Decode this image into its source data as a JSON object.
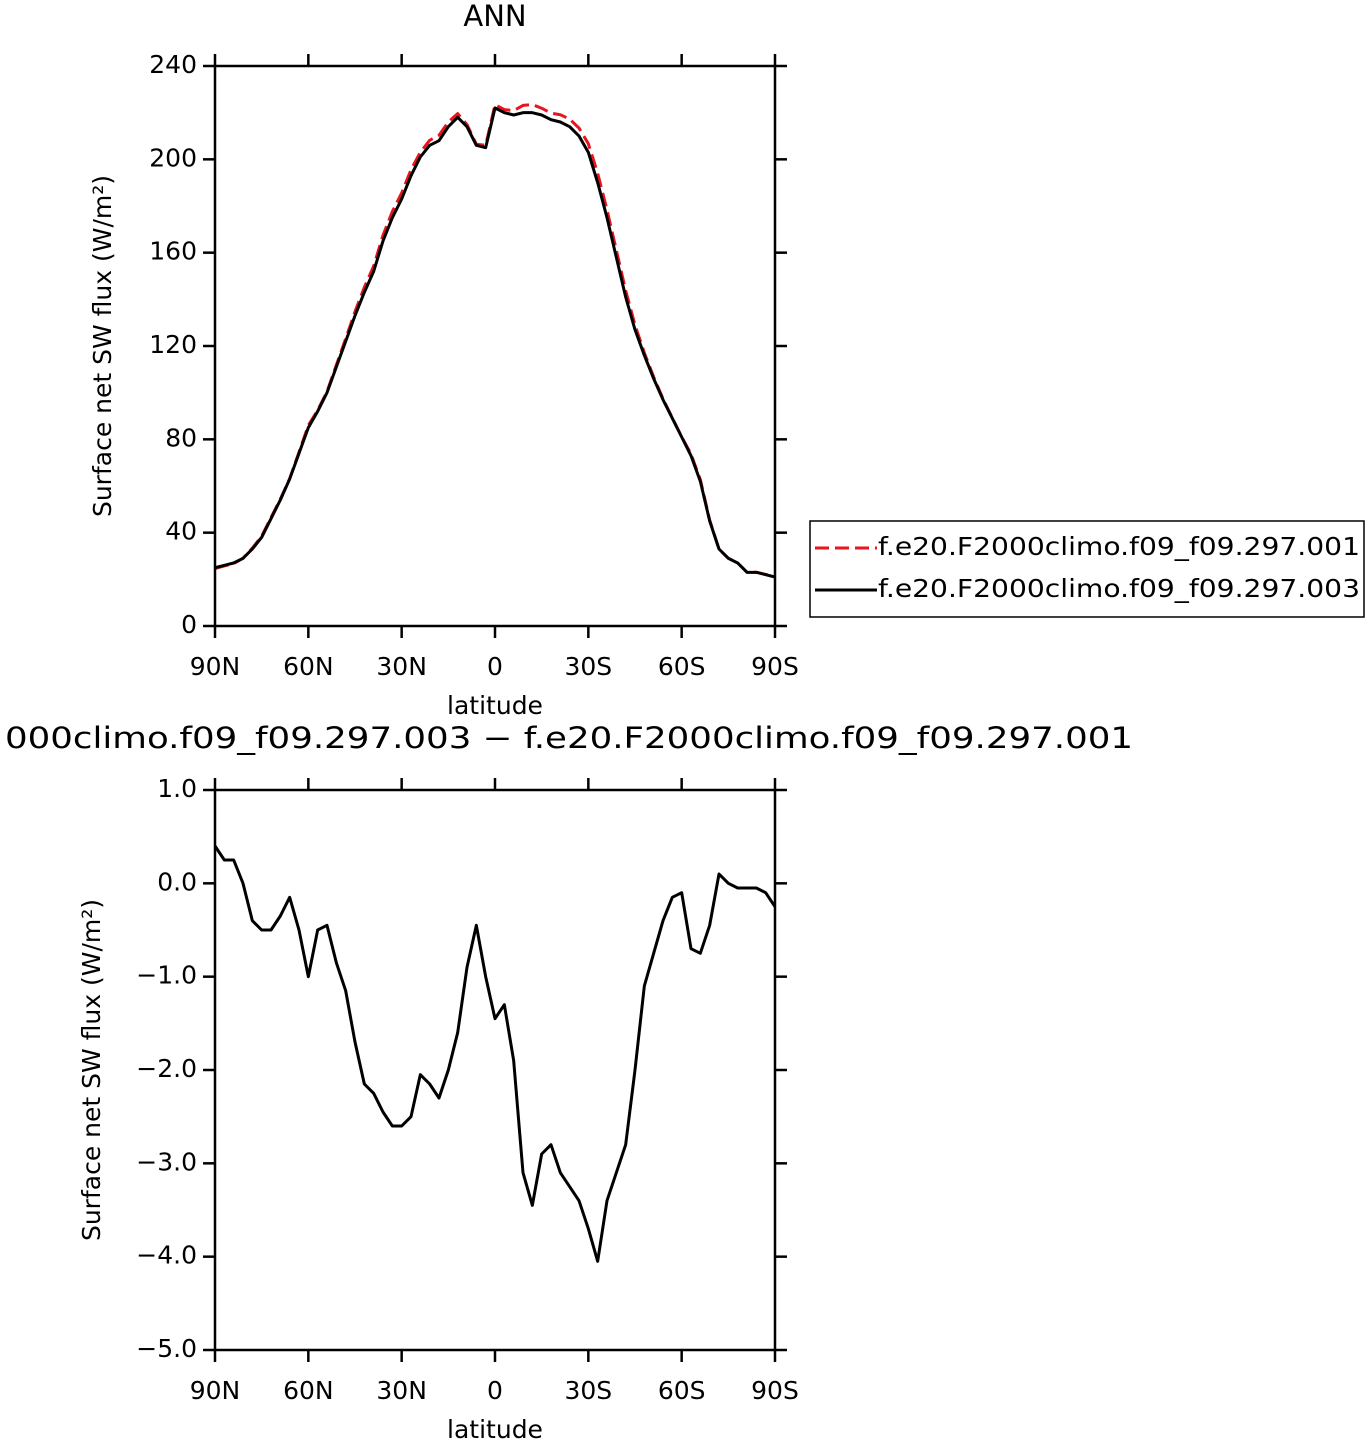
{
  "chart_data": [
    {
      "type": "line",
      "title": "ANN",
      "x_label": "latitude",
      "y_label": "Surface net SW flux (W/m²)",
      "x": [
        90,
        87,
        84,
        81,
        78,
        75,
        72,
        69,
        66,
        63,
        60,
        57,
        54,
        51,
        48,
        45,
        42,
        39,
        36,
        33,
        30,
        27,
        24,
        21,
        18,
        15,
        12,
        9,
        6,
        3,
        0,
        -3,
        -6,
        -9,
        -12,
        -15,
        -18,
        -21,
        -24,
        -27,
        -30,
        -33,
        -36,
        -39,
        -42,
        -45,
        -48,
        -51,
        -54,
        -57,
        -60,
        -63,
        -66,
        -69,
        -72,
        -75,
        -78,
        -81,
        -84,
        -87,
        -90
      ],
      "xlim": [
        90,
        -90
      ],
      "xticks": [
        {
          "value": 90,
          "label": "90N"
        },
        {
          "value": 60,
          "label": "60N"
        },
        {
          "value": 30,
          "label": "30N"
        },
        0,
        {
          "value": -30,
          "label": "30S"
        },
        {
          "value": -60,
          "label": "60S"
        },
        {
          "value": -90,
          "label": "90S"
        }
      ],
      "ylim": [
        0,
        240
      ],
      "yticks": [
        0,
        40,
        80,
        120,
        160,
        200,
        240
      ],
      "legend": "right",
      "series": [
        {
          "name": "f.e20.F2000climo.f09_f09.297.001",
          "color": "#e8141e",
          "line_style": "dashed",
          "values": [
            24.6,
            25.75,
            26.75,
            29,
            33.4,
            38.5,
            46.5,
            54.35,
            63.15,
            74.5,
            86,
            92.5,
            100.45,
            111.85,
            123.15,
            134.7,
            145.15,
            154.25,
            167.45,
            177.6,
            185.6,
            195.5,
            203.05,
            208.15,
            210.3,
            216,
            219.6,
            214.9,
            206.45,
            206,
            223.45,
            221.3,
            220.9,
            223.1,
            223.45,
            221.9,
            219.8,
            219.1,
            217.25,
            213.4,
            206.7,
            194.05,
            178.4,
            161.1,
            143.8,
            129,
            117.1,
            106.75,
            97.4,
            89.15,
            81.1,
            73.7,
            62.75,
            45.45,
            32.9,
            29,
            27.05,
            23.05,
            23.05,
            22.1,
            21.25
          ]
        },
        {
          "name": "f.e20.F2000climo.f09_f09.297.003",
          "color": "#000000",
          "line_style": "solid",
          "values": [
            25,
            26,
            27,
            29,
            33,
            38,
            46,
            54,
            63,
            74,
            85,
            92,
            100,
            111,
            122,
            133,
            143,
            152,
            165,
            175,
            183,
            193,
            201,
            206,
            208,
            214,
            218,
            214,
            206,
            205,
            222,
            220,
            219,
            220,
            220,
            219,
            217,
            216,
            214,
            210,
            203,
            190,
            175,
            158,
            141,
            127,
            116,
            106,
            97,
            89,
            81,
            73,
            62,
            45,
            33,
            29,
            27,
            23,
            23,
            22,
            21
          ]
        }
      ]
    },
    {
      "type": "line",
      "title": "000climo.f09_f09.297.003 − f.e20.F2000climo.f09_f09.297.001",
      "x_label": "latitude",
      "y_label": "Surface net SW flux (W/m²)",
      "x": [
        90,
        87,
        84,
        81,
        78,
        75,
        72,
        69,
        66,
        63,
        60,
        57,
        54,
        51,
        48,
        45,
        42,
        39,
        36,
        33,
        30,
        27,
        24,
        21,
        18,
        15,
        12,
        9,
        6,
        3,
        0,
        -3,
        -6,
        -9,
        -12,
        -15,
        -18,
        -21,
        -24,
        -27,
        -30,
        -33,
        -36,
        -39,
        -42,
        -45,
        -48,
        -51,
        -54,
        -57,
        -60,
        -63,
        -66,
        -69,
        -72,
        -75,
        -78,
        -81,
        -84,
        -87,
        -90
      ],
      "xlim": [
        90,
        -90
      ],
      "xticks": [
        {
          "value": 90,
          "label": "90N"
        },
        {
          "value": 60,
          "label": "60N"
        },
        {
          "value": 30,
          "label": "30N"
        },
        0,
        {
          "value": -30,
          "label": "30S"
        },
        {
          "value": -60,
          "label": "60S"
        },
        {
          "value": -90,
          "label": "90S"
        }
      ],
      "ylim": [
        -5,
        1
      ],
      "yticks": [
        {
          "value": -5,
          "label": "−5.0"
        },
        {
          "value": -4,
          "label": "−4.0"
        },
        {
          "value": -3,
          "label": "−3.0"
        },
        {
          "value": -2,
          "label": "−2.0"
        },
        {
          "value": -1,
          "label": "−1.0"
        },
        {
          "value": 0,
          "label": "0.0"
        },
        {
          "value": 1,
          "label": "1.0"
        }
      ],
      "color": "#000000",
      "line_style": "solid",
      "values": [
        0.4,
        0.25,
        0.25,
        0.0,
        -0.4,
        -0.5,
        -0.5,
        -0.35,
        -0.15,
        -0.5,
        -1.0,
        -0.5,
        -0.45,
        -0.85,
        -1.15,
        -1.7,
        -2.15,
        -2.25,
        -2.45,
        -2.6,
        -2.6,
        -2.5,
        -2.05,
        -2.15,
        -2.3,
        -2.0,
        -1.6,
        -0.9,
        -0.45,
        -1.0,
        -1.45,
        -1.3,
        -1.9,
        -3.1,
        -3.45,
        -2.9,
        -2.8,
        -3.1,
        -3.25,
        -3.4,
        -3.7,
        -4.05,
        -3.4,
        -3.1,
        -2.8,
        -2.0,
        -1.1,
        -0.75,
        -0.4,
        -0.15,
        -0.1,
        -0.7,
        -0.75,
        -0.45,
        0.1,
        0.0,
        -0.05,
        -0.05,
        -0.05,
        -0.1,
        -0.25
      ]
    }
  ]
}
